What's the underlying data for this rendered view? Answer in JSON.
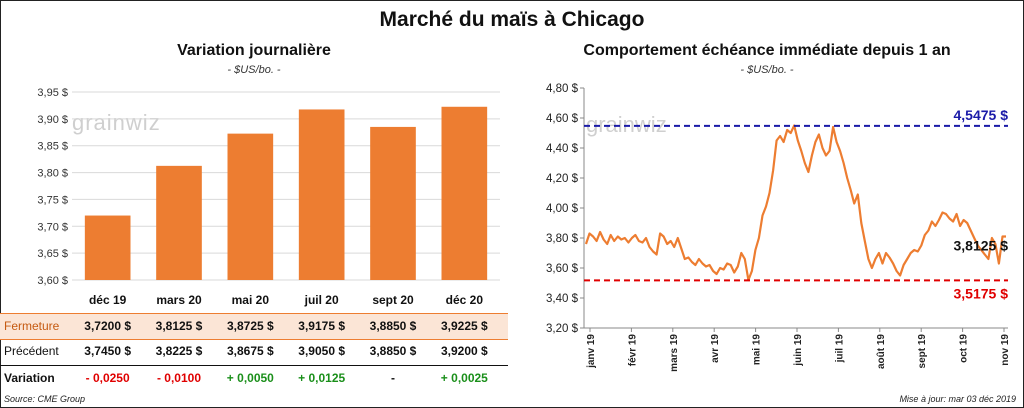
{
  "title": "Marché du maïs à Chicago",
  "left": {
    "title": "Variation  journalière",
    "unit": "- $US/bo. -",
    "watermark": "grainwiz"
  },
  "right": {
    "title": "Comportement  échéance immédiate  depuis 1 an",
    "unit": "- $US/bo. -",
    "watermark": "grainwiz"
  },
  "table": {
    "close_label": "Fermeture",
    "prev_label": "Précédent",
    "var_label": "Variation",
    "close": [
      "3,7200  $",
      "3,8125  $",
      "3,8725  $",
      "3,9175  $",
      "3,8850  $",
      "3,9225  $"
    ],
    "prev": [
      "3,7450  $",
      "3,8225  $",
      "3,8675  $",
      "3,9050  $",
      "3,8850  $",
      "3,9200  $"
    ],
    "variation": [
      "- 0,0250",
      "- 0,0100",
      "+ 0,0050",
      "+ 0,0125",
      "-",
      "+ 0,0025"
    ],
    "variation_colors": [
      "#e00000",
      "#e00000",
      "#1a8f1a",
      "#1a8f1a",
      "#111111",
      "#1a8f1a"
    ]
  },
  "footer": {
    "source": "Source: CME Group",
    "updated": "Mise à jour: mar 03 déc 2019"
  },
  "colors": {
    "orange": "#ed7d31",
    "high_line": "#1a1aa8",
    "low_line": "#e00000",
    "table_highlight": "#fbe5d6",
    "grid": "#d9d9d9"
  },
  "chart_data": [
    {
      "type": "bar",
      "categories": [
        "déc 19",
        "mars 20",
        "mai 20",
        "juil 20",
        "sept 20",
        "déc 20"
      ],
      "values": [
        3.72,
        3.8125,
        3.8725,
        3.9175,
        3.885,
        3.9225
      ],
      "ylim": [
        3.6,
        3.95
      ],
      "yticks": [
        "3,60 $",
        "3,65 $",
        "3,70 $",
        "3,75 $",
        "3,80 $",
        "3,85 $",
        "3,90 $",
        "3,95 $"
      ],
      "grid": true
    },
    {
      "type": "line",
      "ylim": [
        3.2,
        4.8
      ],
      "yticks": [
        "3,20 $",
        "3,40 $",
        "3,60 $",
        "3,80 $",
        "4,00 $",
        "4,20 $",
        "4,40 $",
        "4,60 $",
        "4,80 $"
      ],
      "xticks": [
        "janv 19",
        "févr 19",
        "mars 19",
        "avr 19",
        "mai 19",
        "juin 19",
        "juil 19",
        "août 19",
        "sept 19",
        "oct 19",
        "nov 19"
      ],
      "series": [
        {
          "values": [
            3.76,
            3.83,
            3.81,
            3.78,
            3.84,
            3.79,
            3.76,
            3.82,
            3.78,
            3.81,
            3.79,
            3.8,
            3.77,
            3.8,
            3.82,
            3.78,
            3.77,
            3.8,
            3.74,
            3.71,
            3.69,
            3.83,
            3.81,
            3.76,
            3.78,
            3.74,
            3.8,
            3.73,
            3.66,
            3.67,
            3.64,
            3.62,
            3.66,
            3.63,
            3.61,
            3.62,
            3.58,
            3.56,
            3.6,
            3.59,
            3.63,
            3.62,
            3.57,
            3.61,
            3.7,
            3.66,
            3.52,
            3.58,
            3.72,
            3.8,
            3.95,
            4.01,
            4.1,
            4.25,
            4.45,
            4.48,
            4.44,
            4.52,
            4.5,
            4.55,
            4.45,
            4.38,
            4.3,
            4.24,
            4.35,
            4.44,
            4.49,
            4.4,
            4.35,
            4.38,
            4.54,
            4.44,
            4.38,
            4.3,
            4.2,
            4.12,
            4.03,
            4.09,
            3.9,
            3.78,
            3.66,
            3.6,
            3.66,
            3.7,
            3.63,
            3.7,
            3.67,
            3.63,
            3.58,
            3.55,
            3.62,
            3.66,
            3.7,
            3.72,
            3.71,
            3.75,
            3.82,
            3.85,
            3.91,
            3.88,
            3.92,
            3.97,
            3.96,
            3.93,
            3.91,
            3.96,
            3.88,
            3.92,
            3.9,
            3.85,
            3.8,
            3.75,
            3.72,
            3.69,
            3.66,
            3.8,
            3.76,
            3.63,
            3.81,
            3.81
          ]
        }
      ],
      "hlines": [
        {
          "value": 4.5475,
          "label": "4,5475 $"
        },
        {
          "value": 3.5175,
          "label": "3,5175 $"
        }
      ],
      "last_label": "3,8125 $",
      "grid": false
    }
  ]
}
